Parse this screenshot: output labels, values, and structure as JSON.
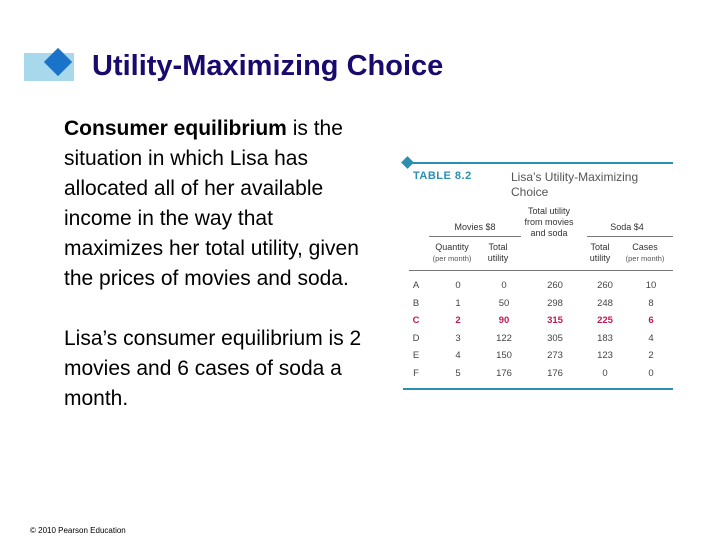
{
  "title": "Utility-Maximizing Choice",
  "paragraph1": {
    "term": "Consumer equilibrium",
    "rest": " is the situation in which Lisa has allocated all of her available income in the way that maximizes her total utility, given the prices of movies and soda."
  },
  "paragraph2": "Lisa’s consumer equilibrium is 2 movies and 6 cases of soda a month.",
  "footer": "© 2010 Pearson Education",
  "table": {
    "number": "TABLE 8.2",
    "title": "Lisa’s Utility-Maximizing Choice",
    "movies_group": "Movies $8",
    "soda_group": "Soda $4",
    "headers": {
      "movie_quantity": "Quantity",
      "movie_quantity_sub": "(per month)",
      "movie_total": "Total",
      "movie_total_sub": "utility",
      "combined": "Total utility from movies and soda",
      "soda_total": "Total",
      "soda_total_sub": "utility",
      "soda_cases": "Cases",
      "soda_cases_sub": "(per month)"
    },
    "rows": [
      {
        "label": "A",
        "quantity": "0",
        "movie_utility": "0",
        "combined": "260",
        "soda_utility": "260",
        "cases": "10"
      },
      {
        "label": "B",
        "quantity": "1",
        "movie_utility": "50",
        "combined": "298",
        "soda_utility": "248",
        "cases": "8"
      },
      {
        "label": "C",
        "quantity": "2",
        "movie_utility": "90",
        "combined": "315",
        "soda_utility": "225",
        "cases": "6"
      },
      {
        "label": "D",
        "quantity": "3",
        "movie_utility": "122",
        "combined": "305",
        "soda_utility": "183",
        "cases": "4"
      },
      {
        "label": "E",
        "quantity": "4",
        "movie_utility": "150",
        "combined": "273",
        "soda_utility": "123",
        "cases": "2"
      },
      {
        "label": "F",
        "quantity": "5",
        "movie_utility": "176",
        "combined": "176",
        "soda_utility": "0",
        "cases": "0"
      }
    ],
    "highlight_row": "C",
    "accent_color": "#2a8fb0",
    "highlight_color": "#c0185a"
  },
  "colors": {
    "title": "#1a0a6e",
    "bullet_light": "#a8d8ec",
    "bullet_dark": "#1a73c9"
  }
}
